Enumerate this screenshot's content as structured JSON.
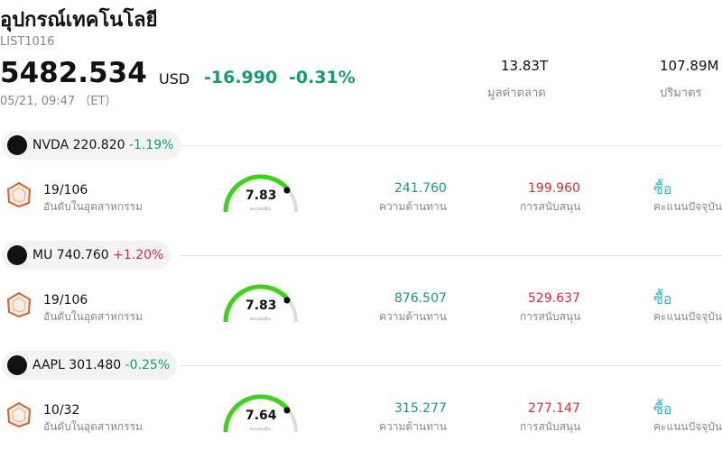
{
  "header": {
    "title": "อุปกรณ์เทคโนโลยี",
    "code": "LIST1016",
    "price": "5482.534",
    "currency": "USD",
    "change": "-16.990",
    "change_pct": "-0.31%",
    "time": "05/21, 09:47 （ET）"
  },
  "stats": [
    {
      "value": "13.83T",
      "label": "มูลค่าตลาด"
    },
    {
      "value": "107.89M",
      "label": "ปริมาตร"
    }
  ],
  "stocks": [
    {
      "ticker": "NVDA",
      "price": "220.820",
      "change": "-1.19%",
      "rank": "19/106",
      "rank_label": "อันดับในอุตสาหกรรม",
      "score": "7.83",
      "score_label": "คะแนนหุ้น",
      "resistance": "241.760",
      "resistance_label": "ความต้านทาน",
      "support": "199.960",
      "support_label": "การสนับสนุน",
      "action": "ซื้อ",
      "action_label": "คะแนนปัจจุบัน"
    },
    {
      "ticker": "MU",
      "price": "740.760",
      "change": "+1.20%",
      "rank": "19/106",
      "rank_label": "อันดับในอุตสาหกรรม",
      "score": "7.83",
      "score_label": "คะแนนหุ้น",
      "resistance": "876.507",
      "resistance_label": "ความต้านทาน",
      "support": "529.637",
      "support_label": "การสนับสนุน",
      "action": "ซื้อ",
      "action_label": "คะแนนปัจจุบัน"
    },
    {
      "ticker": "AAPL",
      "price": "301.480",
      "change": "-0.25%",
      "rank": "10/32",
      "rank_label": "อันดับในอุตสาหกรรม",
      "score": "7.64",
      "score_label": "คะแนนหุ้น",
      "resistance": "315.277",
      "resistance_label": "ความต้านทาน",
      "support": "277.147",
      "support_label": "การสนับสนุน",
      "action": "ซื้อ",
      "action_label": "คะแนนปัจจุบัน"
    }
  ]
}
